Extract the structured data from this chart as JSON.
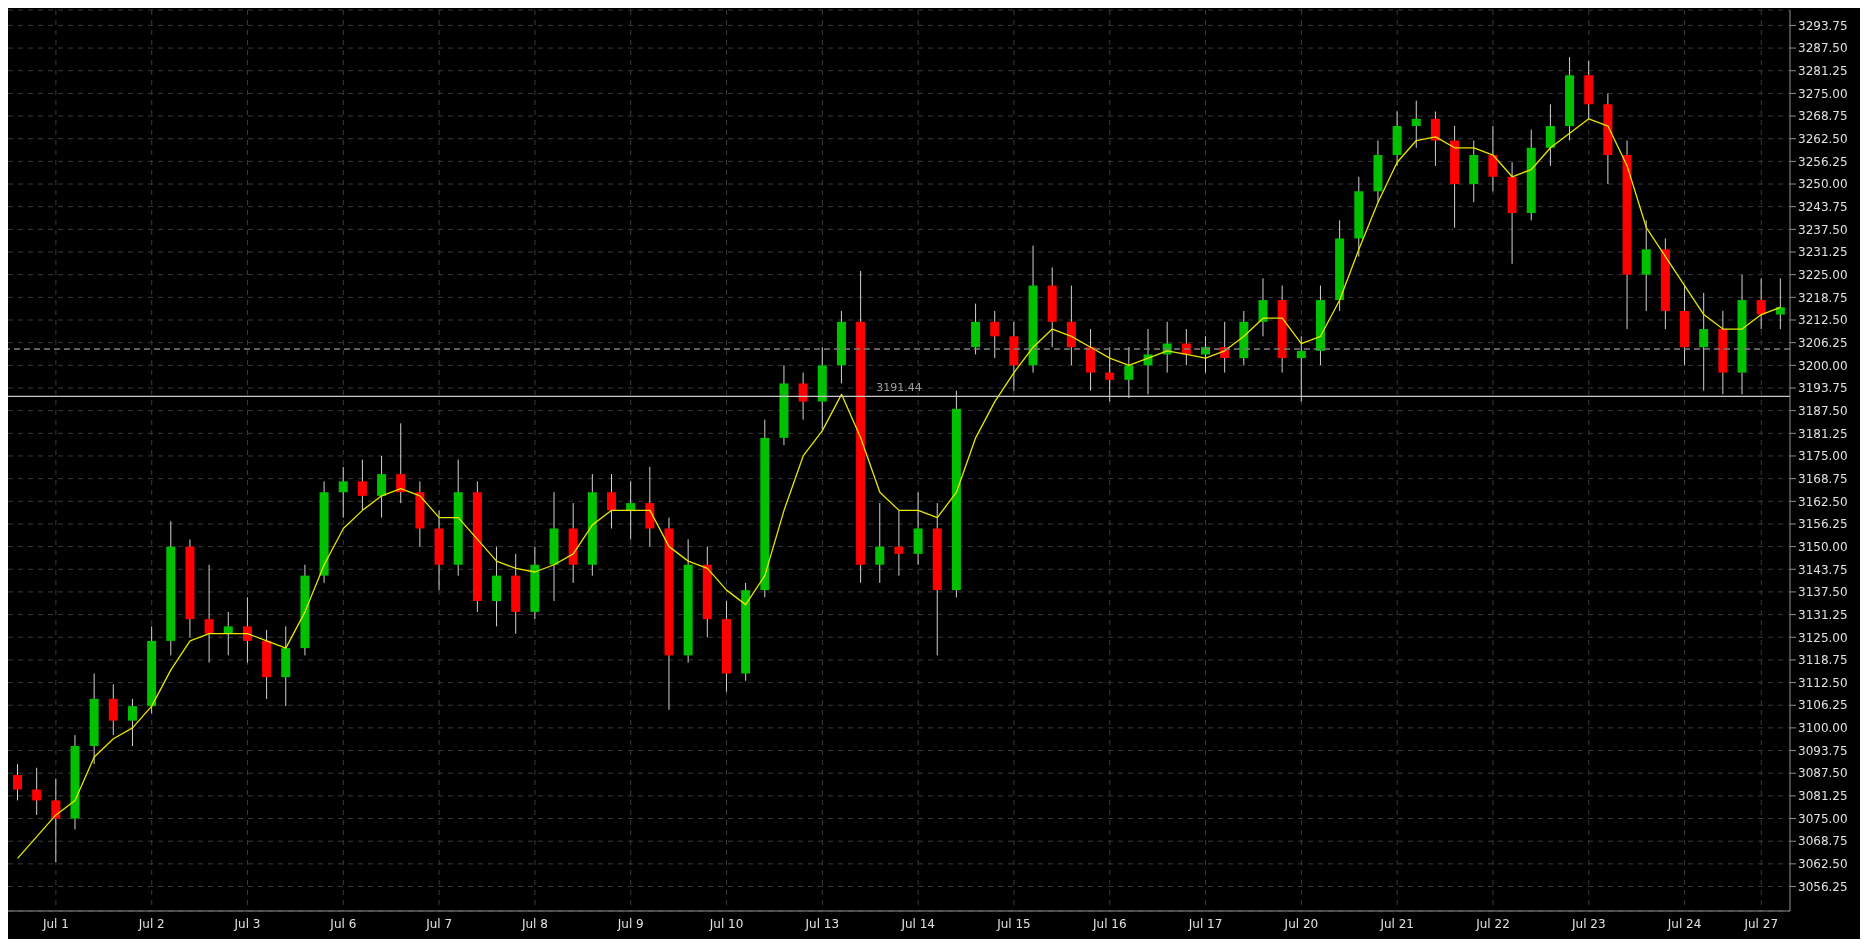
{
  "chart_data": {
    "type": "candlestick",
    "categories": [
      null,
      null,
      "Jul 1",
      null,
      null,
      null,
      null,
      "Jul 2",
      null,
      null,
      null,
      null,
      "Jul 3",
      null,
      null,
      null,
      null,
      "Jul 6",
      null,
      null,
      null,
      null,
      "Jul 7",
      null,
      null,
      null,
      null,
      "Jul 8",
      null,
      null,
      null,
      null,
      "Jul 9",
      null,
      null,
      null,
      null,
      "Jul 10",
      null,
      null,
      null,
      null,
      "Jul 13",
      null,
      null,
      null,
      null,
      "Jul 14",
      null,
      null,
      null,
      null,
      "Jul 15",
      null,
      null,
      null,
      null,
      "Jul 16",
      null,
      null,
      null,
      null,
      "Jul 17",
      null,
      null,
      null,
      null,
      "Jul 20",
      null,
      null,
      null,
      null,
      "Jul 21",
      null,
      null,
      null,
      null,
      "Jul 22",
      null,
      null,
      null,
      null,
      "Jul 23",
      null,
      null,
      null,
      null,
      "Jul 24",
      null,
      null,
      null,
      "Jul 27",
      null
    ],
    "ohlc": [
      [
        3087,
        3090,
        3080,
        3083
      ],
      [
        3083,
        3089,
        3076,
        3080
      ],
      [
        3080,
        3086,
        3063,
        3075
      ],
      [
        3075,
        3098,
        3072,
        3095
      ],
      [
        3095,
        3115,
        3090,
        3108
      ],
      [
        3108,
        3112,
        3098,
        3102
      ],
      [
        3102,
        3108,
        3095,
        3106
      ],
      [
        3106,
        3128,
        3104,
        3124
      ],
      [
        3124,
        3157,
        3120,
        3150
      ],
      [
        3150,
        3152,
        3125,
        3130
      ],
      [
        3130,
        3145,
        3118,
        3126
      ],
      [
        3126,
        3132,
        3120,
        3128
      ],
      [
        3128,
        3136,
        3118,
        3124
      ],
      [
        3124,
        3127,
        3108,
        3114
      ],
      [
        3114,
        3128,
        3106,
        3122
      ],
      [
        3122,
        3145,
        3120,
        3142
      ],
      [
        3142,
        3168,
        3140,
        3165
      ],
      [
        3165,
        3172,
        3158,
        3168
      ],
      [
        3168,
        3174,
        3160,
        3164
      ],
      [
        3164,
        3175,
        3158,
        3170
      ],
      [
        3170,
        3184,
        3162,
        3165
      ],
      [
        3165,
        3168,
        3150,
        3155
      ],
      [
        3155,
        3160,
        3138,
        3145
      ],
      [
        3145,
        3174,
        3142,
        3165
      ],
      [
        3165,
        3168,
        3132,
        3135
      ],
      [
        3135,
        3150,
        3128,
        3142
      ],
      [
        3142,
        3148,
        3126,
        3132
      ],
      [
        3132,
        3150,
        3130,
        3145
      ],
      [
        3145,
        3165,
        3135,
        3155
      ],
      [
        3155,
        3162,
        3140,
        3145
      ],
      [
        3145,
        3170,
        3142,
        3165
      ],
      [
        3165,
        3170,
        3155,
        3160
      ],
      [
        3160,
        3168,
        3152,
        3162
      ],
      [
        3162,
        3172,
        3150,
        3155
      ],
      [
        3155,
        3158,
        3105,
        3120
      ],
      [
        3120,
        3152,
        3118,
        3145
      ],
      [
        3145,
        3150,
        3125,
        3130
      ],
      [
        3130,
        3135,
        3110,
        3115
      ],
      [
        3115,
        3140,
        3113,
        3138
      ],
      [
        3138,
        3185,
        3136,
        3180
      ],
      [
        3180,
        3200,
        3178,
        3195
      ],
      [
        3195,
        3198,
        3185,
        3190
      ],
      [
        3190,
        3205,
        3182,
        3200
      ],
      [
        3200,
        3215,
        3195,
        3212
      ],
      [
        3212,
        3226,
        3140,
        3145
      ],
      [
        3145,
        3162,
        3140,
        3150
      ],
      [
        3150,
        3160,
        3142,
        3148
      ],
      [
        3148,
        3165,
        3145,
        3155
      ],
      [
        3155,
        3162,
        3120,
        3138
      ],
      [
        3138,
        3193,
        3136,
        3188
      ],
      [
        3205,
        3217,
        3203,
        3212
      ],
      [
        3212,
        3215,
        3202,
        3208
      ],
      [
        3208,
        3212,
        3193,
        3200
      ],
      [
        3200,
        3233,
        3198,
        3222
      ],
      [
        3222,
        3227,
        3205,
        3212
      ],
      [
        3212,
        3222,
        3200,
        3205
      ],
      [
        3205,
        3210,
        3193,
        3198
      ],
      [
        3198,
        3205,
        3190,
        3196
      ],
      [
        3196,
        3205,
        3191,
        3200
      ],
      [
        3200,
        3210,
        3192,
        3203
      ],
      [
        3203,
        3212,
        3198,
        3206
      ],
      [
        3206,
        3210,
        3200,
        3203
      ],
      [
        3203,
        3208,
        3198,
        3205
      ],
      [
        3205,
        3212,
        3198,
        3202
      ],
      [
        3202,
        3215,
        3200,
        3212
      ],
      [
        3212,
        3224,
        3208,
        3218
      ],
      [
        3218,
        3222,
        3198,
        3202
      ],
      [
        3202,
        3208,
        3190,
        3204
      ],
      [
        3204,
        3222,
        3200,
        3218
      ],
      [
        3218,
        3240,
        3215,
        3235
      ],
      [
        3235,
        3252,
        3230,
        3248
      ],
      [
        3248,
        3262,
        3245,
        3258
      ],
      [
        3258,
        3270,
        3255,
        3266
      ],
      [
        3266,
        3273,
        3260,
        3268
      ],
      [
        3268,
        3270,
        3255,
        3262
      ],
      [
        3262,
        3266,
        3238,
        3250
      ],
      [
        3250,
        3262,
        3245,
        3258
      ],
      [
        3258,
        3266,
        3248,
        3252
      ],
      [
        3252,
        3256,
        3228,
        3242
      ],
      [
        3242,
        3265,
        3240,
        3260
      ],
      [
        3260,
        3272,
        3255,
        3266
      ],
      [
        3266,
        3285,
        3262,
        3280
      ],
      [
        3280,
        3284,
        3268,
        3272
      ],
      [
        3272,
        3275,
        3250,
        3258
      ],
      [
        3258,
        3262,
        3210,
        3225
      ],
      [
        3225,
        3240,
        3215,
        3232
      ],
      [
        3232,
        3235,
        3210,
        3215
      ],
      [
        3215,
        3222,
        3200,
        3205
      ],
      [
        3205,
        3220,
        3193,
        3210
      ],
      [
        3210,
        3215,
        3192,
        3198
      ],
      [
        3198,
        3225,
        3192,
        3218
      ],
      [
        3218,
        3224,
        3210,
        3214
      ],
      [
        3214,
        3224,
        3210,
        3216
      ]
    ],
    "colors": [
      "#ff0000",
      "#ff0000",
      "#ff0000",
      "#00c000",
      "#00c000",
      "#ff0000",
      "#00c000",
      "#00c000",
      "#00c000",
      "#ff0000",
      "#ff0000",
      "#00c000",
      "#ff0000",
      "#ff0000",
      "#00c000",
      "#00c000",
      "#00c000",
      "#00c000",
      "#ff0000",
      "#00c000",
      "#ff0000",
      "#ff0000",
      "#ff0000",
      "#00c000",
      "#ff0000",
      "#00c000",
      "#ff0000",
      "#00c000",
      "#00c000",
      "#ff0000",
      "#00c000",
      "#ff0000",
      "#00c000",
      "#ff0000",
      "#ff0000",
      "#00c000",
      "#ff0000",
      "#ff0000",
      "#00c000",
      "#00c000",
      "#00c000",
      "#ff0000",
      "#00c000",
      "#00c000",
      "#ff0000",
      "#00c000",
      "#ff0000",
      "#00c000",
      "#ff0000",
      "#00c000",
      "#00c000",
      "#ff0000",
      "#ff0000",
      "#00c000",
      "#ff0000",
      "#ff0000",
      "#ff0000",
      "#ff0000",
      "#00c000",
      "#00c000",
      "#00c000",
      "#ff0000",
      "#00c000",
      "#ff0000",
      "#00c000",
      "#00c000",
      "#ff0000",
      "#00c000",
      "#00c000",
      "#00c000",
      "#00c000",
      "#00c000",
      "#00c000",
      "#00c000",
      "#ff0000",
      "#ff0000",
      "#00c000",
      "#ff0000",
      "#ff0000",
      "#00c000",
      "#00c000",
      "#00c000",
      "#ff0000",
      "#ff0000",
      "#ff0000",
      "#00c000",
      "#ff0000",
      "#ff0000",
      "#00c000",
      "#ff0000",
      "#00c000",
      "#ff0000",
      "#00c000"
    ],
    "series": [
      {
        "type": "line",
        "color": "#e6e600",
        "values": [
          3064,
          3070,
          3076,
          3080,
          3092,
          3097,
          3100,
          3106,
          3116,
          3124,
          3126,
          3126,
          3126,
          3124,
          3122,
          3132,
          3145,
          3155,
          3160,
          3164,
          3166,
          3164,
          3158,
          3158,
          3152,
          3146,
          3144,
          3143,
          3145,
          3148,
          3156,
          3160,
          3160,
          3160,
          3150,
          3146,
          3144,
          3138,
          3134,
          3142,
          3160,
          3175,
          3182,
          3192,
          3180,
          3165,
          3160,
          3160,
          3158,
          3165,
          3180,
          3190,
          3198,
          3205,
          3210,
          3208,
          3205,
          3202,
          3200,
          3202,
          3204,
          3203,
          3202,
          3204,
          3208,
          3213,
          3213,
          3206,
          3208,
          3218,
          3232,
          3245,
          3256,
          3262,
          3263,
          3260,
          3260,
          3258,
          3252,
          3254,
          3260,
          3264,
          3268,
          3266,
          3255,
          3238,
          3230,
          3222,
          3214,
          3210,
          3210,
          3214,
          3216
        ]
      }
    ],
    "ylim": [
      3049.5,
      3298
    ],
    "yticks": [
      3056.25,
      {
        "value": 3062.5,
        "label": "3062.50"
      },
      3068.75,
      {
        "value": 3075,
        "label": "3075.00"
      },
      3081.25,
      {
        "value": 3087.5,
        "label": "3087.50"
      },
      3093.75,
      {
        "value": 3100,
        "label": "3100.00"
      },
      3106.25,
      {
        "value": 3112.5,
        "label": "3112.50"
      },
      3118.75,
      {
        "value": 3125,
        "label": "3125.00"
      },
      3131.25,
      {
        "value": 3137.5,
        "label": "3137.50"
      },
      3143.75,
      {
        "value": 3150,
        "label": "3150.00"
      },
      3156.25,
      {
        "value": 3162.5,
        "label": "3162.50"
      },
      3168.75,
      {
        "value": 3175,
        "label": "3175.00"
      },
      3181.25,
      {
        "value": 3187.5,
        "label": "3187.50"
      },
      3193.75,
      {
        "value": 3200,
        "label": "3200.00"
      },
      3206.25,
      {
        "value": 3212.5,
        "label": "3212.50"
      },
      3218.75,
      {
        "value": 3225,
        "label": "3225.00"
      },
      3231.25,
      {
        "value": 3237.5,
        "label": "3237.50"
      },
      3243.75,
      {
        "value": 3250,
        "label": "3250.00"
      },
      3256.25,
      {
        "value": 3262.5,
        "label": "3262.50"
      },
      3268.75,
      {
        "value": 3275,
        "label": "3275.00"
      },
      3281.25,
      {
        "value": 3287.5,
        "label": "3287.50"
      },
      3293.75
    ],
    "grid": true,
    "ref_lines": [
      {
        "axis": "y",
        "value": 3191.44,
        "label": "3191.44",
        "color": "#c8c8c8",
        "line_style": "solid"
      },
      {
        "axis": "y",
        "value": 3204.5,
        "color": "#808080",
        "line_style": "dashed"
      }
    ]
  }
}
